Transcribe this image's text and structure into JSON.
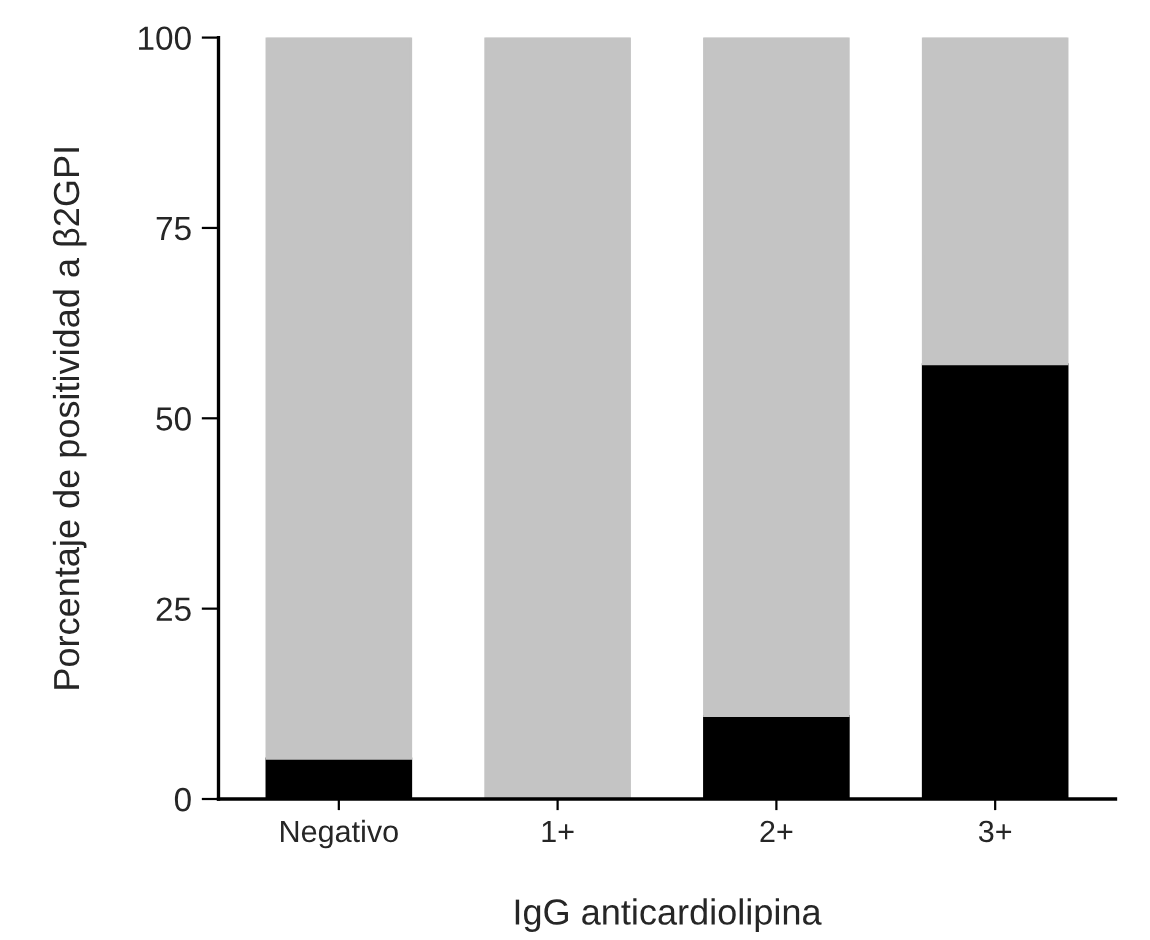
{
  "chart_data": {
    "type": "bar",
    "stacked": true,
    "xlabel": "IgG anticardiolipina",
    "ylabel": "Porcentaje de positividad a β2GPI",
    "categories": [
      "Negativo",
      "1+",
      "2+",
      "3+"
    ],
    "series": [
      {
        "color": "#000000",
        "values": [
          5.3,
          0,
          10.9,
          57.1
        ]
      },
      {
        "color": "#c4c4c4",
        "values": [
          94.7,
          100,
          89.1,
          42.9
        ]
      }
    ],
    "ylim": [
      0,
      100
    ],
    "yticks": [
      0,
      25,
      50,
      75,
      100
    ],
    "grid": false,
    "legend": false
  }
}
